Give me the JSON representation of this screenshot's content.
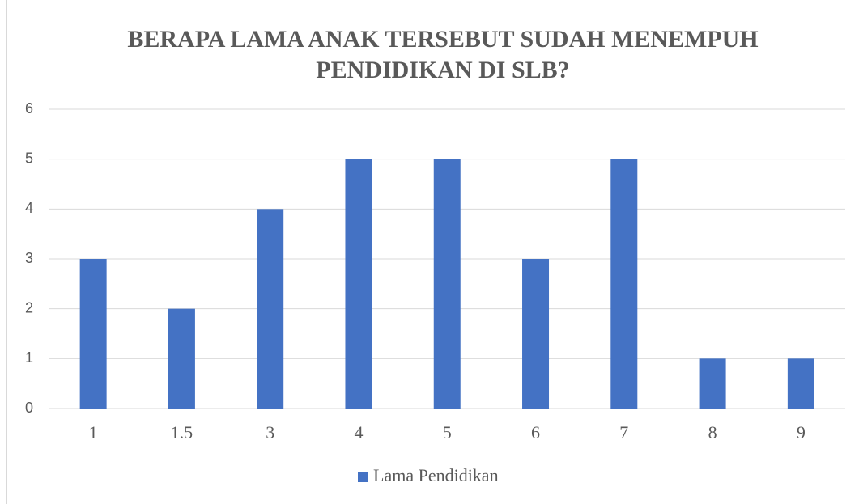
{
  "chart_data": {
    "type": "bar",
    "title": "BERAPA LAMA ANAK TERSEBUT SUDAH MENEMPUH PENDIDIKAN DI SLB?",
    "categories": [
      "1",
      "1.5",
      "3",
      "4",
      "5",
      "6",
      "7",
      "8",
      "9"
    ],
    "series": [
      {
        "name": "Lama Pendidikan",
        "color": "#4472c4",
        "values": [
          3,
          2,
          4,
          5,
          5,
          3,
          5,
          1,
          1
        ]
      }
    ],
    "ylim": [
      0,
      6
    ],
    "yticks": [
      0,
      1,
      2,
      3,
      4,
      5,
      6
    ],
    "grid": true,
    "legend": "bottom"
  }
}
